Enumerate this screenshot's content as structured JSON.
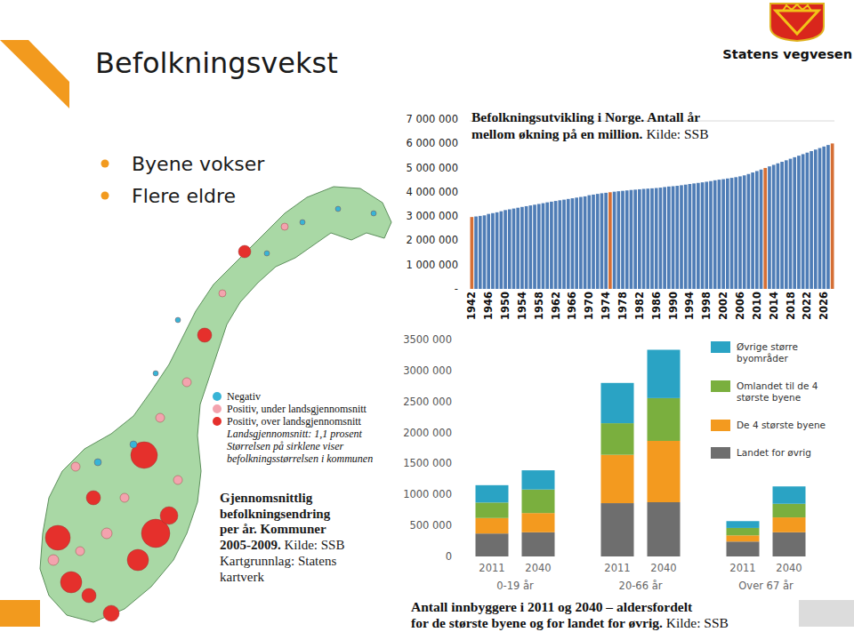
{
  "slide": {
    "title": "Befolkningsvekst",
    "bullets": [
      "Byene vokser",
      "Flere eldre"
    ],
    "logo_text": "Statens vegvesen"
  },
  "map": {
    "legend": [
      {
        "label": "Negativ",
        "color": "#38b4d6"
      },
      {
        "label": "Positiv, under landsgjennomsnitt",
        "color": "#f3a3ae"
      },
      {
        "label": "Positiv, over landsgjennomsnitt",
        "color": "#e5302c"
      }
    ],
    "notes": [
      "Landsgjennomsnitt: 1,1 prosent",
      "Størrelsen på sirklene viser",
      "befolkningsstørrelsen i kommunen"
    ],
    "caption": [
      "Gjennomsnittlig",
      "befolkningsendring",
      "per år. Kommuner",
      "2005-2009."
    ],
    "source": [
      "Kilde: SSB",
      "Kartgrunnlag: Statens",
      "kartverk"
    ]
  },
  "chart_data": [
    {
      "type": "bar",
      "title": [
        "Befolkningsutvikling i Norge. Antall år",
        "mellom økning på en million."
      ],
      "source": "Kilde: SSB",
      "categories": [
        "1942",
        null,
        null,
        null,
        "1946",
        null,
        null,
        null,
        "1950",
        null,
        null,
        null,
        "1954",
        null,
        null,
        null,
        "1958",
        null,
        null,
        null,
        "1962",
        null,
        null,
        null,
        "1966",
        null,
        null,
        null,
        "1970",
        null,
        null,
        null,
        "1974",
        null,
        null,
        null,
        "1978",
        null,
        null,
        null,
        "1982",
        null,
        null,
        null,
        "1986",
        null,
        null,
        null,
        "1990",
        null,
        null,
        null,
        "1994",
        null,
        null,
        null,
        "1998",
        null,
        null,
        null,
        "2002",
        null,
        null,
        null,
        "2006",
        null,
        null,
        null,
        "2010",
        null,
        null,
        null,
        "2014",
        null,
        null,
        null,
        "2018",
        null,
        null,
        null,
        "2022",
        null,
        null,
        null,
        "2026",
        null,
        null
      ],
      "values": [
        2963000,
        2986000,
        3009000,
        3032000,
        3091000,
        3123000,
        3157000,
        3201000,
        3250000,
        3280000,
        3313000,
        3346000,
        3379000,
        3410000,
        3441000,
        3471000,
        3502000,
        3533000,
        3568000,
        3596000,
        3625000,
        3653000,
        3679000,
        3708000,
        3736000,
        3764000,
        3791000,
        3815000,
        3863000,
        3888000,
        3917000,
        3943000,
        3962000,
        3985000,
        4007000,
        4026000,
        4043000,
        4060000,
        4079000,
        4092000,
        4107000,
        4123000,
        4134000,
        4146000,
        4159000,
        4175000,
        4199000,
        4221000,
        4233000,
        4250000,
        4274000,
        4299000,
        4325000,
        4348000,
        4370000,
        4393000,
        4418000,
        4445000,
        4478000,
        4503000,
        4524000,
        4552000,
        4577000,
        4606000,
        4640000,
        4681000,
        4737000,
        4799000,
        4858000,
        4920000,
        4986000,
        5051000,
        5114000,
        5177000,
        5240000,
        5303000,
        5366000,
        5429000,
        5492000,
        5555000,
        5618000,
        5681000,
        5744000,
        5807000,
        5870000,
        5933000,
        5996000
      ],
      "colors": [
        "#d56f35",
        "#4f7db6",
        "#4f7db6",
        "#4f7db6",
        "#4f7db6",
        "#4f7db6",
        "#4f7db6",
        "#4f7db6",
        "#4f7db6",
        "#4f7db6",
        "#4f7db6",
        "#4f7db6",
        "#4f7db6",
        "#4f7db6",
        "#4f7db6",
        "#4f7db6",
        "#4f7db6",
        "#4f7db6",
        "#4f7db6",
        "#4f7db6",
        "#4f7db6",
        "#4f7db6",
        "#4f7db6",
        "#4f7db6",
        "#4f7db6",
        "#4f7db6",
        "#4f7db6",
        "#4f7db6",
        "#4f7db6",
        "#4f7db6",
        "#4f7db6",
        "#4f7db6",
        "#4f7db6",
        "#d56f35",
        "#4f7db6",
        "#4f7db6",
        "#4f7db6",
        "#4f7db6",
        "#4f7db6",
        "#4f7db6",
        "#4f7db6",
        "#4f7db6",
        "#4f7db6",
        "#4f7db6",
        "#4f7db6",
        "#4f7db6",
        "#4f7db6",
        "#4f7db6",
        "#4f7db6",
        "#4f7db6",
        "#4f7db6",
        "#4f7db6",
        "#4f7db6",
        "#4f7db6",
        "#4f7db6",
        "#4f7db6",
        "#4f7db6",
        "#4f7db6",
        "#4f7db6",
        "#4f7db6",
        "#4f7db6",
        "#4f7db6",
        "#4f7db6",
        "#4f7db6",
        "#4f7db6",
        "#4f7db6",
        "#4f7db6",
        "#4f7db6",
        "#4f7db6",
        "#4f7db6",
        "#d56f35",
        "#4f7db6",
        "#4f7db6",
        "#4f7db6",
        "#4f7db6",
        "#4f7db6",
        "#4f7db6",
        "#4f7db6",
        "#4f7db6",
        "#4f7db6",
        "#4f7db6",
        "#4f7db6",
        "#4f7db6",
        "#4f7db6",
        "#4f7db6",
        "#4f7db6",
        "#d56f35"
      ],
      "ylim": [
        0,
        7000000
      ],
      "yticks": [
        {
          "value": 0,
          "label": "-"
        },
        {
          "value": 1000000,
          "label": "1 000 000"
        },
        {
          "value": 2000000,
          "label": "2 000 000"
        },
        {
          "value": 3000000,
          "label": "3 000 000"
        },
        {
          "value": 4000000,
          "label": "4 000 000"
        },
        {
          "value": 5000000,
          "label": "5 000 000"
        },
        {
          "value": 6000000,
          "label": "6 000 000"
        },
        {
          "value": 7000000,
          "label": "7 000 000"
        }
      ],
      "grid": false
    },
    {
      "type": "bar",
      "stacked": true,
      "title": [
        "Antall innbyggere i 2011 og 2040 – aldersfordelt",
        "for de største byene og for landet for øvrig."
      ],
      "source": "Kilde: SSB",
      "categories": [
        "2011",
        "2040",
        "2011",
        "2040",
        "2011",
        "2040"
      ],
      "groups": [
        "0-19 år",
        "20-66 år",
        "Over 67 år"
      ],
      "series": [
        {
          "name": "Landet  for øvrig",
          "color": "#6e6e6e",
          "values": [
            370000,
            390000,
            860000,
            875000,
            240000,
            390000
          ]
        },
        {
          "name": "De 4 største byene",
          "color": "#f39a1f",
          "values": [
            250000,
            310000,
            780000,
            990000,
            100000,
            240000
          ]
        },
        {
          "name": "Omlandet til de 4 største byene",
          "color": "#7aaf3e",
          "values": [
            250000,
            380000,
            510000,
            690000,
            120000,
            220000
          ]
        },
        {
          "name": "Øvrige større byområder",
          "color": "#2aa3c4",
          "values": [
            280000,
            310000,
            650000,
            780000,
            110000,
            280000
          ]
        }
      ],
      "ylim": [
        0,
        3500000
      ],
      "yticks": [
        0,
        {
          "value": 500000,
          "label": "500 000"
        },
        {
          "value": 1000000,
          "label": "1000 000"
        },
        {
          "value": 1500000,
          "label": "1500 000"
        },
        {
          "value": 2000000,
          "label": "2000 000"
        },
        {
          "value": 2500000,
          "label": "2500 000"
        },
        {
          "value": 3000000,
          "label": "3000 000"
        },
        {
          "value": 3500000,
          "label": "3500 000"
        }
      ],
      "legend": "top-right",
      "grid": false
    }
  ]
}
